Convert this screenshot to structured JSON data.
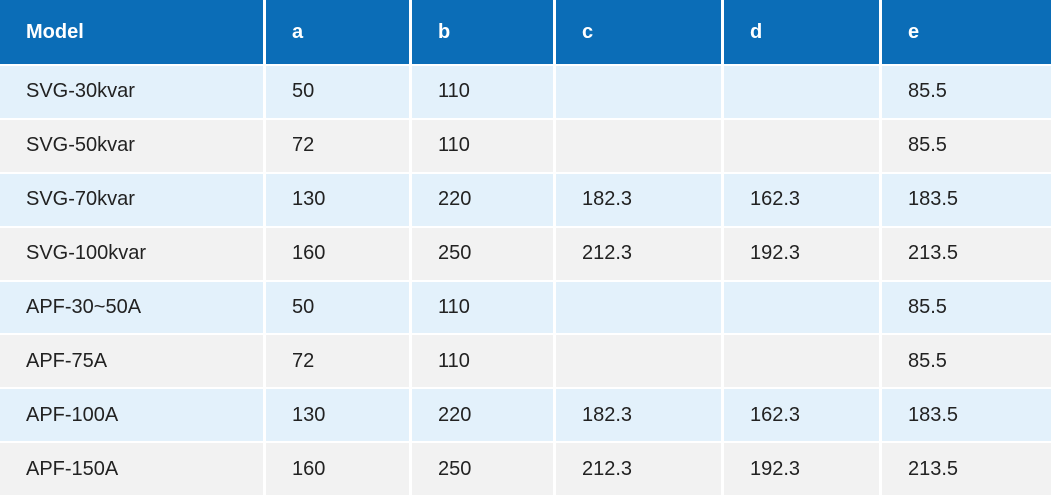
{
  "table": {
    "header": [
      "Model",
      "a",
      "b",
      "c",
      "d",
      "e"
    ],
    "rows": [
      [
        "SVG-30kvar",
        "50",
        "110",
        null,
        null,
        "85.5"
      ],
      [
        "SVG-50kvar",
        "72",
        "110",
        null,
        null,
        "85.5"
      ],
      [
        "SVG-70kvar",
        "130",
        "220",
        "182.3",
        "162.3",
        "183.5"
      ],
      [
        "SVG-100kvar",
        "160",
        "250",
        "212.3",
        "192.3",
        "213.5"
      ],
      [
        "APF-30~50A",
        "50",
        "110",
        null,
        null,
        "85.5"
      ],
      [
        "APF-75A",
        "72",
        "110",
        null,
        null,
        "85.5"
      ],
      [
        "APF-100A",
        "130",
        "220",
        "182.3",
        "162.3",
        "183.5"
      ],
      [
        "APF-150A",
        "160",
        "250",
        "212.3",
        "192.3",
        "213.5"
      ]
    ]
  }
}
